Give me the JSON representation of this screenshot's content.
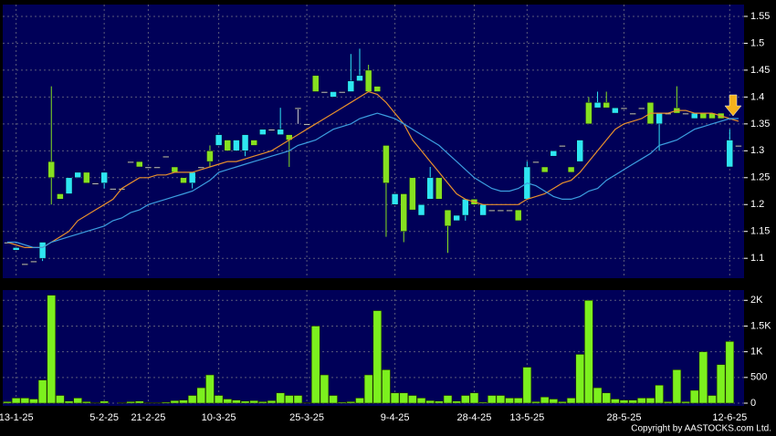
{
  "chart_data": {
    "type": "candlestick",
    "categories": [
      null,
      "13-1-25",
      null,
      null,
      null,
      null,
      null,
      null,
      null,
      null,
      null,
      "5-2-25",
      null,
      null,
      null,
      null,
      "21-2-25",
      null,
      null,
      null,
      null,
      null,
      null,
      null,
      "10-3-25",
      null,
      null,
      null,
      null,
      null,
      null,
      null,
      null,
      null,
      "25-3-25",
      null,
      null,
      null,
      null,
      null,
      null,
      null,
      null,
      null,
      "9-4-25",
      null,
      null,
      null,
      null,
      null,
      null,
      null,
      null,
      "28-4-25",
      null,
      null,
      null,
      null,
      null,
      "13-5-25",
      null,
      null,
      null,
      null,
      null,
      null,
      null,
      null,
      null,
      null,
      "28-5-25",
      null,
      null,
      null,
      null,
      null,
      null,
      null,
      null,
      null,
      null,
      null,
      "12-6-25",
      null
    ],
    "open": [
      1.13,
      1.115,
      1.09,
      1.095,
      1.1,
      1.28,
      1.22,
      1.22,
      1.25,
      1.26,
      1.24,
      1.24,
      1.23,
      1.23,
      1.28,
      1.28,
      1.27,
      1.27,
      1.29,
      1.27,
      1.25,
      1.24,
      1.27,
      1.3,
      1.31,
      1.32,
      1.3,
      1.3,
      1.32,
      1.33,
      1.34,
      1.33,
      1.33,
      1.38,
      1.35,
      1.44,
      1.41,
      1.4,
      1.41,
      1.41,
      1.43,
      1.45,
      1.42,
      1.31,
      1.2,
      1.22,
      1.25,
      1.18,
      1.21,
      1.25,
      1.19,
      1.17,
      1.18,
      1.21,
      1.18,
      1.19,
      1.19,
      1.19,
      1.19,
      1.21,
      1.28,
      1.27,
      1.29,
      1.31,
      1.27,
      1.28,
      1.39,
      1.38,
      1.39,
      1.37,
      1.38,
      1.37,
      1.38,
      1.39,
      1.35,
      1.37,
      1.38,
      1.37,
      1.36,
      1.37,
      1.37,
      1.37,
      1.27,
      1.31
    ],
    "high": [
      1.13,
      1.12,
      1.09,
      1.095,
      1.13,
      1.42,
      1.22,
      1.25,
      1.26,
      1.26,
      1.24,
      1.26,
      1.23,
      1.23,
      1.28,
      1.28,
      1.27,
      1.27,
      1.29,
      1.27,
      1.25,
      1.26,
      1.27,
      1.31,
      1.33,
      1.32,
      1.32,
      1.33,
      1.32,
      1.34,
      1.34,
      1.38,
      1.33,
      1.38,
      1.35,
      1.44,
      1.41,
      1.41,
      1.41,
      1.48,
      1.49,
      1.46,
      1.42,
      1.31,
      1.22,
      1.22,
      1.25,
      1.2,
      1.27,
      1.25,
      1.19,
      1.18,
      1.21,
      1.21,
      1.2,
      1.19,
      1.19,
      1.19,
      1.19,
      1.28,
      1.28,
      1.27,
      1.3,
      1.31,
      1.27,
      1.32,
      1.4,
      1.41,
      1.41,
      1.38,
      1.38,
      1.37,
      1.38,
      1.39,
      1.37,
      1.37,
      1.42,
      1.37,
      1.37,
      1.37,
      1.37,
      1.37,
      1.34,
      1.31
    ],
    "low": [
      1.13,
      1.115,
      1.09,
      1.095,
      1.095,
      1.2,
      1.21,
      1.22,
      1.25,
      1.24,
      1.24,
      1.23,
      1.23,
      1.23,
      1.28,
      1.27,
      1.27,
      1.27,
      1.29,
      1.26,
      1.24,
      1.23,
      1.27,
      1.27,
      1.31,
      1.3,
      1.3,
      1.29,
      1.31,
      1.33,
      1.34,
      1.33,
      1.27,
      1.35,
      1.35,
      1.41,
      1.41,
      1.4,
      1.41,
      1.41,
      1.43,
      1.41,
      1.41,
      1.14,
      1.2,
      1.13,
      1.19,
      1.18,
      1.21,
      1.21,
      1.11,
      1.17,
      1.17,
      1.2,
      1.18,
      1.19,
      1.19,
      1.19,
      1.17,
      1.21,
      1.28,
      1.26,
      1.29,
      1.31,
      1.26,
      1.28,
      1.35,
      1.38,
      1.38,
      1.37,
      1.38,
      1.37,
      1.38,
      1.35,
      1.3,
      1.37,
      1.37,
      1.37,
      1.36,
      1.36,
      1.36,
      1.36,
      1.27,
      1.31
    ],
    "close": [
      1.13,
      1.12,
      1.09,
      1.095,
      1.13,
      1.25,
      1.21,
      1.25,
      1.26,
      1.24,
      1.24,
      1.26,
      1.23,
      1.23,
      1.28,
      1.27,
      1.27,
      1.27,
      1.29,
      1.26,
      1.24,
      1.26,
      1.27,
      1.28,
      1.33,
      1.3,
      1.32,
      1.33,
      1.31,
      1.34,
      1.34,
      1.34,
      1.32,
      1.38,
      1.35,
      1.41,
      1.41,
      1.41,
      1.41,
      1.43,
      1.44,
      1.41,
      1.41,
      1.24,
      1.22,
      1.15,
      1.19,
      1.2,
      1.25,
      1.21,
      1.16,
      1.18,
      1.21,
      1.2,
      1.2,
      1.19,
      1.19,
      1.19,
      1.17,
      1.27,
      1.28,
      1.26,
      1.3,
      1.31,
      1.26,
      1.32,
      1.35,
      1.39,
      1.38,
      1.38,
      1.38,
      1.37,
      1.38,
      1.35,
      1.37,
      1.37,
      1.37,
      1.37,
      1.37,
      1.36,
      1.36,
      1.36,
      1.32,
      1.31
    ],
    "up_color": "#2ee6f2",
    "down_color": "#86e020",
    "flat_color": "#c8c8c8",
    "moving_averages": [
      {
        "color": "#e8902c",
        "values": [
          1.13,
          1.125,
          1.12,
          1.12,
          1.12,
          1.13,
          1.14,
          1.15,
          1.17,
          1.18,
          1.19,
          1.2,
          1.21,
          1.23,
          1.24,
          1.25,
          1.25,
          1.255,
          1.255,
          1.26,
          1.26,
          1.26,
          1.265,
          1.27,
          1.275,
          1.28,
          1.28,
          1.285,
          1.29,
          1.295,
          1.3,
          1.31,
          1.32,
          1.33,
          1.34,
          1.35,
          1.36,
          1.37,
          1.38,
          1.39,
          1.4,
          1.41,
          1.405,
          1.39,
          1.37,
          1.35,
          1.32,
          1.3,
          1.28,
          1.26,
          1.24,
          1.22,
          1.21,
          1.205,
          1.2,
          1.2,
          1.2,
          1.2,
          1.2,
          1.21,
          1.215,
          1.22,
          1.23,
          1.24,
          1.245,
          1.26,
          1.28,
          1.3,
          1.32,
          1.34,
          1.35,
          1.355,
          1.36,
          1.37,
          1.37,
          1.37,
          1.375,
          1.375,
          1.37,
          1.37,
          1.37,
          1.365,
          1.36,
          1.355
        ]
      },
      {
        "color": "#3c9ee0",
        "values": [
          1.13,
          1.13,
          1.125,
          1.12,
          1.12,
          1.13,
          1.135,
          1.14,
          1.145,
          1.15,
          1.155,
          1.16,
          1.17,
          1.175,
          1.185,
          1.19,
          1.2,
          1.205,
          1.21,
          1.215,
          1.22,
          1.225,
          1.235,
          1.245,
          1.26,
          1.265,
          1.27,
          1.275,
          1.28,
          1.285,
          1.29,
          1.295,
          1.3,
          1.31,
          1.315,
          1.32,
          1.33,
          1.34,
          1.345,
          1.35,
          1.36,
          1.365,
          1.37,
          1.365,
          1.36,
          1.35,
          1.34,
          1.33,
          1.32,
          1.31,
          1.295,
          1.28,
          1.265,
          1.25,
          1.24,
          1.23,
          1.225,
          1.225,
          1.23,
          1.24,
          1.235,
          1.225,
          1.215,
          1.21,
          1.21,
          1.215,
          1.225,
          1.23,
          1.245,
          1.255,
          1.265,
          1.275,
          1.285,
          1.295,
          1.31,
          1.315,
          1.32,
          1.33,
          1.34,
          1.345,
          1.35,
          1.355,
          1.36,
          1.36
        ]
      }
    ],
    "ylim": [
      1.063,
      1.572
    ],
    "yticks": [
      1.1,
      1.15,
      1.2,
      1.25,
      1.3,
      1.35,
      1.4,
      1.45,
      1.5,
      1.55
    ],
    "grid": true,
    "volume": {
      "color": "#7cf01e",
      "values": [
        30,
        100,
        100,
        80,
        450,
        2100,
        150,
        40,
        100,
        30,
        10,
        40,
        0,
        10,
        30,
        40,
        10,
        10,
        20,
        50,
        60,
        150,
        300,
        550,
        150,
        80,
        60,
        40,
        50,
        30,
        50,
        200,
        150,
        150,
        10,
        1500,
        550,
        150,
        20,
        30,
        100,
        550,
        1800,
        650,
        200,
        200,
        150,
        100,
        50,
        40,
        150,
        40,
        150,
        200,
        20,
        150,
        150,
        100,
        100,
        700,
        30,
        120,
        80,
        30,
        100,
        950,
        2000,
        300,
        200,
        80,
        60,
        60,
        100,
        100,
        350,
        30,
        650,
        30,
        250,
        1000,
        150,
        750,
        1200,
        0
      ],
      "ylim": [
        0,
        2200
      ],
      "yticks": [
        0,
        500,
        {
          "value": 1000,
          "label": "1K"
        },
        {
          "value": 1500,
          "label": "1.5K"
        },
        {
          "value": 2000,
          "label": "2K"
        }
      ]
    },
    "copyright": "Copyright by AASTOCKS.com Ltd."
  }
}
